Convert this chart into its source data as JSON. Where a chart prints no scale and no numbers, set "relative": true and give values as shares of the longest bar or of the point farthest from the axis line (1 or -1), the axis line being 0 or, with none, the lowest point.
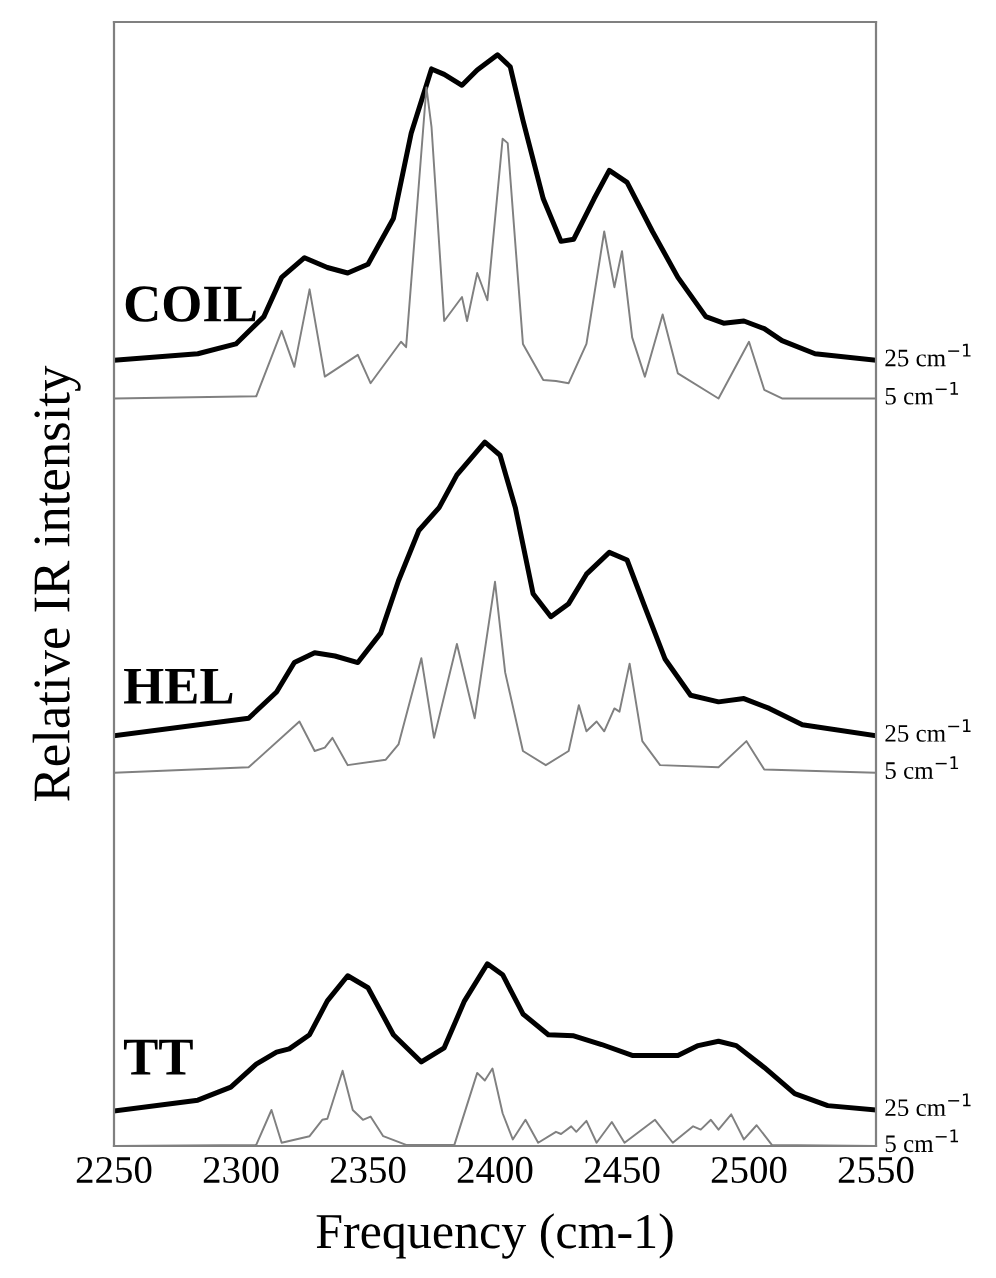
{
  "chart_data": {
    "type": "line",
    "relative": true,
    "xlabel": "Frequency (cm-1)",
    "ylabel": "Relative IR intensity",
    "xlim": [
      2250,
      2550
    ],
    "xticks": [
      2250,
      2300,
      2350,
      2400,
      2450,
      2500,
      2550
    ],
    "tick_labels": "x",
    "grid": false,
    "legend": false,
    "marker": "none",
    "line_style": "solid",
    "annotations": [
      "COIL",
      "HEL",
      "TT"
    ],
    "series": [
      {
        "name": "25 cm$^{−1}$",
        "color": "#000000",
        "x": [
          2250,
          2283,
          2298,
          2309,
          2316,
          2325,
          2334,
          2342,
          2350,
          2360,
          2367,
          2375,
          2380,
          2387,
          2393,
          2401,
          2406,
          2411,
          2419,
          2426,
          2431,
          2439,
          2445,
          2452,
          2462,
          2472,
          2483,
          2490,
          2498,
          2506,
          2513,
          2526,
          2550
        ],
        "values": [
          0.72,
          0.726,
          0.735,
          0.76,
          0.796,
          0.814,
          0.805,
          0.8,
          0.808,
          0.85,
          0.928,
          0.987,
          0.982,
          0.972,
          0.986,
          1.0,
          0.989,
          0.94,
          0.868,
          0.829,
          0.831,
          0.868,
          0.894,
          0.883,
          0.838,
          0.796,
          0.76,
          0.754,
          0.756,
          0.749,
          0.738,
          0.726,
          0.72
        ]
      },
      {
        "name": "5 cm$^{−1}$",
        "color": "#808080",
        "x": [
          2250,
          2306,
          2316,
          2321,
          2327,
          2333,
          2346,
          2351,
          2363,
          2365,
          2373,
          2375,
          2380,
          2387,
          2389,
          2393,
          2397,
          2403,
          2405,
          2411,
          2419,
          2424,
          2429,
          2436,
          2443,
          2447,
          2450,
          2454,
          2459,
          2466,
          2472,
          2488,
          2500,
          2506,
          2513,
          2550
        ],
        "values": [
          0.685,
          0.687,
          0.747,
          0.714,
          0.785,
          0.705,
          0.725,
          0.699,
          0.737,
          0.732,
          0.97,
          0.934,
          0.756,
          0.778,
          0.756,
          0.8,
          0.775,
          0.923,
          0.919,
          0.735,
          0.702,
          0.701,
          0.699,
          0.735,
          0.838,
          0.787,
          0.82,
          0.741,
          0.705,
          0.762,
          0.708,
          0.685,
          0.737,
          0.693,
          0.685,
          0.685
        ]
      },
      {
        "name": "25 cm$^{−1}$",
        "color": "#000000",
        "x": [
          2250,
          2303,
          2314,
          2321,
          2329,
          2337,
          2346,
          2355,
          2362,
          2370,
          2378,
          2385,
          2396,
          2402,
          2408,
          2415,
          2422,
          2429,
          2436,
          2445,
          2452,
          2459,
          2467,
          2477,
          2488,
          2498,
          2508,
          2521,
          2550
        ],
        "values": [
          0.376,
          0.392,
          0.416,
          0.443,
          0.452,
          0.449,
          0.443,
          0.47,
          0.518,
          0.564,
          0.585,
          0.615,
          0.645,
          0.633,
          0.585,
          0.506,
          0.485,
          0.497,
          0.524,
          0.544,
          0.537,
          0.494,
          0.446,
          0.413,
          0.407,
          0.41,
          0.401,
          0.386,
          0.376
        ]
      },
      {
        "name": "5 cm$^{−1}$",
        "color": "#808080",
        "x": [
          2250,
          2303,
          2323,
          2329,
          2333,
          2336,
          2342,
          2357,
          2362,
          2371,
          2376,
          2385,
          2392,
          2400,
          2404,
          2411,
          2420,
          2429,
          2433,
          2436,
          2440,
          2443,
          2447,
          2449,
          2453,
          2458,
          2465,
          2488,
          2499,
          2506,
          2550
        ],
        "values": [
          0.342,
          0.347,
          0.389,
          0.362,
          0.365,
          0.374,
          0.349,
          0.354,
          0.368,
          0.447,
          0.374,
          0.46,
          0.392,
          0.517,
          0.434,
          0.362,
          0.349,
          0.362,
          0.404,
          0.38,
          0.389,
          0.38,
          0.401,
          0.398,
          0.442,
          0.371,
          0.349,
          0.347,
          0.371,
          0.345,
          0.342
        ]
      },
      {
        "name": "25 cm$^{−1}$",
        "color": "#000000",
        "x": [
          2250,
          2283,
          2296,
          2306,
          2314,
          2319,
          2327,
          2334,
          2342,
          2350,
          2360,
          2371,
          2380,
          2388,
          2397,
          2403,
          2411,
          2421,
          2431,
          2442,
          2454,
          2472,
          2480,
          2488,
          2495,
          2506,
          2518,
          2531,
          2550
        ],
        "values": [
          0.032,
          0.042,
          0.054,
          0.075,
          0.086,
          0.089,
          0.102,
          0.133,
          0.156,
          0.145,
          0.102,
          0.077,
          0.09,
          0.133,
          0.167,
          0.157,
          0.121,
          0.102,
          0.101,
          0.093,
          0.083,
          0.083,
          0.092,
          0.096,
          0.092,
          0.072,
          0.048,
          0.037,
          0.033
        ]
      },
      {
        "name": "5 cm$^{−1}$",
        "color": "#808080",
        "x": [
          2250,
          2306,
          2312,
          2316,
          2327,
          2332,
          2334,
          2340,
          2344,
          2348,
          2351,
          2356,
          2365,
          2384,
          2393,
          2396,
          2399,
          2403,
          2407,
          2412,
          2417,
          2424,
          2426,
          2430,
          2432,
          2436,
          2440,
          2446,
          2451,
          2463,
          2470,
          2478,
          2481,
          2485,
          2488,
          2493,
          2498,
          2503,
          2509,
          2550
        ],
        "values": [
          0,
          0.001,
          0.033,
          0.003,
          0.009,
          0.024,
          0.025,
          0.069,
          0.033,
          0.024,
          0.027,
          0.009,
          0.001,
          0.001,
          0.067,
          0.06,
          0.071,
          0.03,
          0.006,
          0.024,
          0.003,
          0.013,
          0.011,
          0.018,
          0.013,
          0.023,
          0.003,
          0.022,
          0.003,
          0.024,
          0.003,
          0.018,
          0.015,
          0.024,
          0.015,
          0.029,
          0.006,
          0.019,
          0.001,
          0
        ]
      }
    ]
  }
}
